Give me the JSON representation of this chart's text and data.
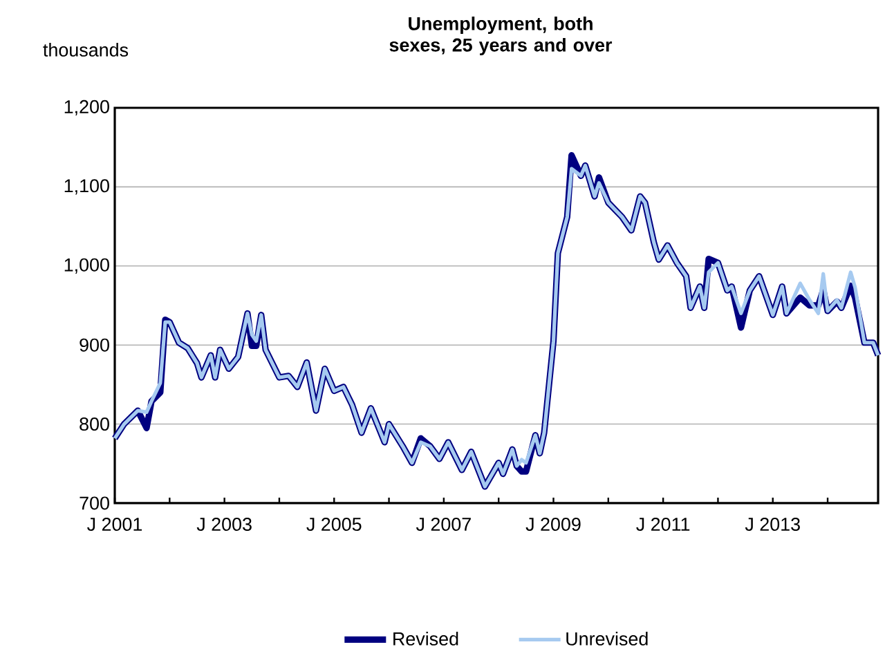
{
  "chart_data": {
    "type": "line",
    "title": "Unemployment, both sexes, 25 years and over",
    "ylabel": "thousands",
    "x": [
      "2001-01",
      "2001-03",
      "2001-06",
      "2001-08",
      "2001-09",
      "2001-11",
      "2001-12",
      "2002-01",
      "2002-03",
      "2002-05",
      "2002-07",
      "2002-08",
      "2002-10",
      "2002-11",
      "2002-12",
      "2003-02",
      "2003-04",
      "2003-06",
      "2003-07",
      "2003-08",
      "2003-09",
      "2003-10",
      "2004-01",
      "2004-03",
      "2004-05",
      "2004-07",
      "2004-09",
      "2004-11",
      "2005-01",
      "2005-03",
      "2005-05",
      "2005-07",
      "2005-09",
      "2005-12",
      "2006-01",
      "2006-04",
      "2006-06",
      "2006-08",
      "2006-10",
      "2006-12",
      "2007-02",
      "2007-05",
      "2007-07",
      "2007-10",
      "2008-01",
      "2008-02",
      "2008-04",
      "2008-05",
      "2008-06",
      "2008-07",
      "2008-09",
      "2008-10",
      "2008-11",
      "2009-01",
      "2009-02",
      "2009-04",
      "2009-05",
      "2009-07",
      "2009-08",
      "2009-10",
      "2009-11",
      "2010-01",
      "2010-04",
      "2010-06",
      "2010-08",
      "2010-09",
      "2010-11",
      "2010-12",
      "2011-02",
      "2011-04",
      "2011-06",
      "2011-07",
      "2011-09",
      "2011-10",
      "2011-11",
      "2012-01",
      "2012-03",
      "2012-04",
      "2012-06",
      "2012-08",
      "2012-10",
      "2013-01",
      "2013-03",
      "2013-04",
      "2013-07",
      "2013-09",
      "2013-11",
      "2013-12",
      "2014-01",
      "2014-03",
      "2014-04",
      "2014-06",
      "2014-07",
      "2014-09",
      "2014-11",
      "2014-12"
    ],
    "series": [
      {
        "name": "Revised",
        "color": "#000080",
        "values": [
          782,
          800,
          817,
          795,
          829,
          840,
          932,
          929,
          903,
          896,
          877,
          859,
          887,
          859,
          894,
          870,
          885,
          940,
          899,
          899,
          938,
          894,
          859,
          861,
          847,
          878,
          817,
          870,
          842,
          847,
          824,
          789,
          820,
          777,
          800,
          772,
          751,
          782,
          772,
          756,
          777,
          742,
          765,
          721,
          751,
          737,
          768,
          747,
          740,
          740,
          786,
          763,
          789,
          905,
          1016,
          1062,
          1140,
          1114,
          1127,
          1088,
          1112,
          1080,
          1062,
          1045,
          1088,
          1080,
          1030,
          1008,
          1026,
          1004,
          987,
          947,
          974,
          947,
          1009,
          1004,
          969,
          974,
          922,
          969,
          987,
          938,
          974,
          940,
          960,
          950,
          950,
          970,
          943,
          955,
          947,
          975,
          960,
          903,
          903,
          887
        ]
      },
      {
        "name": "Unrevised",
        "color": "#a6caf0",
        "values": [
          782,
          800,
          817,
          815,
          829,
          852,
          929,
          929,
          903,
          896,
          877,
          859,
          887,
          859,
          894,
          870,
          885,
          940,
          913,
          905,
          938,
          894,
          859,
          861,
          847,
          878,
          817,
          870,
          842,
          847,
          824,
          789,
          820,
          777,
          800,
          772,
          751,
          777,
          772,
          756,
          777,
          742,
          765,
          721,
          751,
          737,
          768,
          747,
          755,
          751,
          786,
          763,
          789,
          905,
          1016,
          1062,
          1123,
          1114,
          1127,
          1088,
          1105,
          1080,
          1062,
          1045,
          1088,
          1080,
          1030,
          1008,
          1026,
          1004,
          987,
          947,
          974,
          947,
          992,
          1004,
          969,
          974,
          940,
          969,
          987,
          938,
          974,
          940,
          978,
          957,
          940,
          990,
          943,
          957,
          947,
          992,
          973,
          903,
          903,
          887
        ]
      }
    ],
    "xlim": [
      "2001-01",
      "2014-12"
    ],
    "xticks": [
      {
        "value": "2001-01",
        "label": "J 2001"
      },
      {
        "value": "2002-01",
        "label": null
      },
      {
        "value": "2003-01",
        "label": "J 2003"
      },
      {
        "value": "2004-01",
        "label": null
      },
      {
        "value": "2005-01",
        "label": "J 2005"
      },
      {
        "value": "2006-01",
        "label": null
      },
      {
        "value": "2007-01",
        "label": "J 2007"
      },
      {
        "value": "2008-01",
        "label": null
      },
      {
        "value": "2009-01",
        "label": "J 2009"
      },
      {
        "value": "2010-01",
        "label": null
      },
      {
        "value": "2011-01",
        "label": "J 2011"
      },
      {
        "value": "2012-01",
        "label": null
      },
      {
        "value": "2013-01",
        "label": "J 2013"
      },
      {
        "value": "2014-01",
        "label": null
      }
    ],
    "ylim": [
      700,
      1200
    ],
    "yticks": [
      700,
      800,
      900,
      {
        "value": 1000,
        "label": "1,000"
      },
      {
        "value": 1100,
        "label": "1,100"
      },
      {
        "value": 1200,
        "label": "1,200"
      }
    ],
    "grid": "y",
    "legend": "bottom",
    "marker": "none",
    "line_style": "solid"
  }
}
